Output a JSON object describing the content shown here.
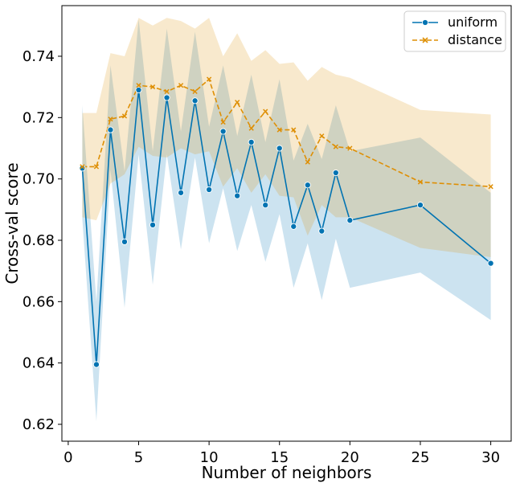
{
  "chart_data": {
    "type": "line",
    "xlabel": "Number of neighbors",
    "ylabel": "Cross-val score",
    "xlim": [
      -0.45,
      31.45
    ],
    "ylim": [
      0.6145,
      0.7565
    ],
    "xticks": [
      0,
      5,
      10,
      15,
      20,
      25,
      30
    ],
    "yticks": [
      0.62,
      0.64,
      0.66,
      0.68,
      0.7,
      0.72,
      0.74
    ],
    "grid": false,
    "legend_position": "top-right",
    "x": [
      1,
      2,
      3,
      4,
      5,
      6,
      7,
      8,
      9,
      10,
      11,
      12,
      13,
      14,
      15,
      16,
      17,
      18,
      19,
      20,
      25,
      30
    ],
    "series": [
      {
        "name": "uniform",
        "marker": "circle",
        "linestyle": "solid",
        "color": "#0173b2",
        "band_color": "#0173b2",
        "values": [
          0.7035,
          0.6395,
          0.716,
          0.6795,
          0.729,
          0.685,
          0.7265,
          0.6955,
          0.7255,
          0.6965,
          0.7155,
          0.6945,
          0.712,
          0.6915,
          0.71,
          0.6845,
          0.698,
          0.683,
          0.702,
          0.6865,
          0.6915,
          0.6725
        ],
        "lower": [
          0.687,
          0.621,
          0.703,
          0.658,
          0.708,
          0.6655,
          0.708,
          0.677,
          0.707,
          0.679,
          0.697,
          0.6765,
          0.6915,
          0.673,
          0.6885,
          0.6645,
          0.679,
          0.6605,
          0.6805,
          0.6645,
          0.6695,
          0.654
        ],
        "upper": [
          0.724,
          0.66,
          0.737,
          0.7025,
          0.752,
          0.709,
          0.749,
          0.7155,
          0.748,
          0.717,
          0.737,
          0.714,
          0.734,
          0.712,
          0.7325,
          0.706,
          0.718,
          0.7065,
          0.724,
          0.709,
          0.7135,
          0.6955
        ]
      },
      {
        "name": "distance",
        "marker": "x",
        "linestyle": "dashed",
        "color": "#de8f05",
        "band_color": "#de8f05",
        "values": [
          0.704,
          0.704,
          0.7195,
          0.7205,
          0.7305,
          0.73,
          0.7285,
          0.7305,
          0.7285,
          0.7325,
          0.7185,
          0.725,
          0.7165,
          0.722,
          0.716,
          0.716,
          0.7055,
          0.714,
          0.7105,
          0.71,
          0.699,
          0.6975
        ],
        "lower": [
          0.6875,
          0.6865,
          0.6985,
          0.7015,
          0.7105,
          0.7075,
          0.707,
          0.71,
          0.708,
          0.709,
          0.6975,
          0.7035,
          0.6955,
          0.7015,
          0.6945,
          0.694,
          0.6815,
          0.6915,
          0.6875,
          0.6875,
          0.6775,
          0.6745
        ],
        "upper": [
          0.7215,
          0.7215,
          0.741,
          0.74,
          0.7525,
          0.75,
          0.7525,
          0.7515,
          0.749,
          0.7525,
          0.74,
          0.7475,
          0.7385,
          0.742,
          0.7375,
          0.738,
          0.732,
          0.7365,
          0.734,
          0.733,
          0.7225,
          0.721
        ]
      }
    ]
  }
}
